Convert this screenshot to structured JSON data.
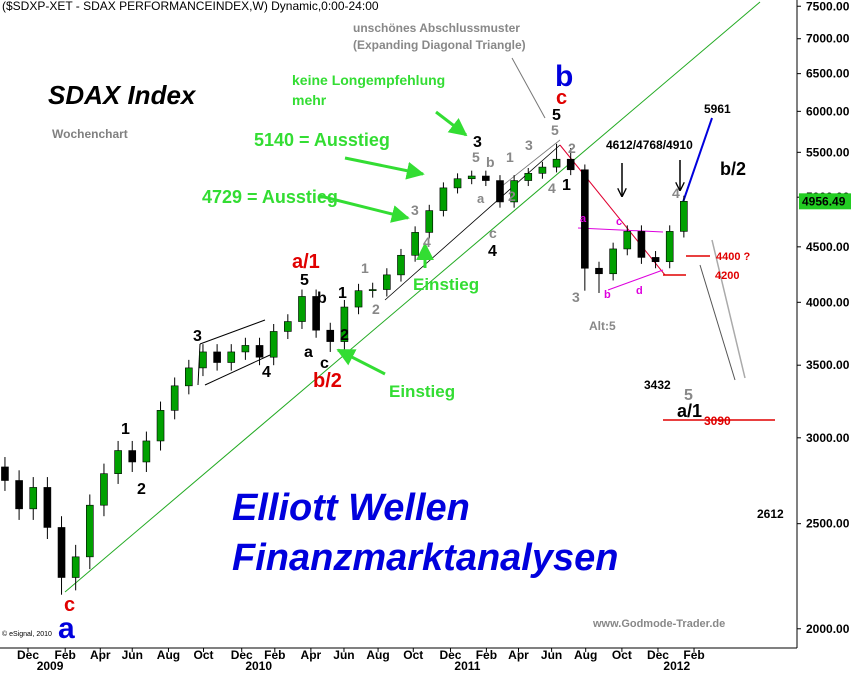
{
  "chart_data": {
    "type": "candlestick",
    "header": "($SDXP-XET - SDAX PERFORMANCEINDEX,W) Dynamic,0:00-24:00",
    "title": "SDAX Index",
    "subtitle": "Wochenchart",
    "log_scale": true,
    "up_color": "#00a000",
    "down_color": "#000000",
    "ylim": [
      1920,
      7600
    ],
    "yticks": [
      {
        "value": 2000,
        "label": "2000.00"
      },
      {
        "value": 2500,
        "label": "2500.00"
      },
      {
        "value": 3000,
        "label": "3000.00"
      },
      {
        "value": 3500,
        "label": "3500.00"
      },
      {
        "value": 4000,
        "label": "4000.00"
      },
      {
        "value": 4500,
        "label": "4500.00"
      },
      {
        "value": 5000,
        "label": "5000.00"
      },
      {
        "value": 5500,
        "label": "5500.00"
      },
      {
        "value": 6000,
        "label": "6000.00"
      },
      {
        "value": 6500,
        "label": "6500.00"
      },
      {
        "value": 7000,
        "label": "7000.00"
      },
      {
        "value": 7500,
        "label": "7500.00"
      }
    ],
    "xlim": [
      -0.35,
      56
    ],
    "xticks": [
      {
        "value": 1.63,
        "label": "Dec"
      },
      {
        "value": 4.26,
        "label": "Feb"
      },
      {
        "value": 6.74,
        "label": "Apr"
      },
      {
        "value": 9.0,
        "label": "Jun"
      },
      {
        "value": 11.56,
        "label": "Aug"
      },
      {
        "value": 14.04,
        "label": "Oct"
      },
      {
        "value": 16.74,
        "label": "Dec"
      },
      {
        "value": 19.08,
        "label": "Feb"
      },
      {
        "value": 21.63,
        "label": "Apr"
      },
      {
        "value": 23.97,
        "label": "Jun"
      },
      {
        "value": 26.38,
        "label": "Aug"
      },
      {
        "value": 28.87,
        "label": "Oct"
      },
      {
        "value": 31.5,
        "label": "Dec"
      },
      {
        "value": 34.04,
        "label": "Feb"
      },
      {
        "value": 36.31,
        "label": "Apr"
      },
      {
        "value": 38.65,
        "label": "Jun"
      },
      {
        "value": 41.06,
        "label": "Aug"
      },
      {
        "value": 43.62,
        "label": "Oct"
      },
      {
        "value": 46.17,
        "label": "Dec"
      },
      {
        "value": 48.72,
        "label": "Feb"
      }
    ],
    "year_ticks": [
      {
        "value": 3.19,
        "label": "2009"
      },
      {
        "value": 17.94,
        "label": "2010"
      },
      {
        "value": 32.7,
        "label": "2011"
      },
      {
        "value": 47.5,
        "label": "2012"
      }
    ],
    "open": [
      2820,
      2740,
      2580,
      2700,
      2480,
      2230,
      2330,
      2600,
      2780,
      2920,
      2850,
      2980,
      3180,
      3350,
      3480,
      3600,
      3520,
      3600,
      3650,
      3560,
      3760,
      3840,
      4050,
      3770,
      3680,
      3960,
      4100,
      4110,
      4240,
      4420,
      4640,
      4860,
      5100,
      5200,
      5230,
      5180,
      4950,
      5180,
      5260,
      5330,
      5420,
      5300,
      4300,
      4250,
      4480,
      4650,
      4400,
      4360,
      4650
    ],
    "high": [
      2880,
      2800,
      2760,
      2760,
      2540,
      2390,
      2660,
      2840,
      2980,
      2980,
      3040,
      3240,
      3410,
      3540,
      3660,
      3660,
      3660,
      3710,
      3710,
      3820,
      3900,
      4110,
      4110,
      3830,
      4020,
      4160,
      4170,
      4300,
      4480,
      4700,
      4920,
      5160,
      5260,
      5290,
      5290,
      5240,
      5240,
      5320,
      5390,
      5600,
      5550,
      5360,
      4360,
      4540,
      4710,
      4710,
      4460,
      4710,
      5016
    ],
    "low": [
      2680,
      2520,
      2520,
      2420,
      2150,
      2170,
      2270,
      2540,
      2720,
      2790,
      2790,
      2920,
      3120,
      3290,
      3420,
      3460,
      3460,
      3540,
      3500,
      3500,
      3700,
      3780,
      3710,
      3600,
      3620,
      3900,
      4040,
      4050,
      4180,
      4360,
      4580,
      4800,
      5040,
      5140,
      5120,
      4890,
      4890,
      5120,
      5200,
      5270,
      5240,
      4100,
      4080,
      4190,
      4420,
      4340,
      4300,
      4300,
      4590
    ],
    "close": [
      2740,
      2580,
      2700,
      2480,
      2230,
      2330,
      2600,
      2780,
      2920,
      2850,
      2980,
      3180,
      3350,
      3480,
      3600,
      3520,
      3600,
      3650,
      3560,
      3760,
      3840,
      4050,
      3770,
      3680,
      3960,
      4100,
      4110,
      4240,
      4420,
      4640,
      4860,
      5100,
      5200,
      5230,
      5180,
      4950,
      5180,
      5260,
      5330,
      5420,
      5300,
      4300,
      4250,
      4480,
      4650,
      4400,
      4360,
      4650,
      4956.49
    ],
    "annotations": [
      "keine Longempfehlung",
      "mehr",
      "5140 = Ausstieg",
      "4729 = Ausstieg",
      "unschönes Abschlussmuster",
      "(Expanding Diagonal Triangle)",
      "Elliott Wellen",
      "Finanzmarktanalysen",
      "Einstieg",
      "Einstieg",
      "www.Godmode-Trader.de",
      "© eSignal, 2010",
      "b",
      "c",
      "5",
      "5",
      "3",
      "5",
      "b",
      "a",
      "c",
      "4",
      "1",
      "2",
      "3",
      "4",
      "1",
      "2",
      "3",
      "a/1",
      "5",
      "b",
      "1",
      "1",
      "2",
      "2",
      "a",
      "c",
      "b/2",
      "3",
      "4",
      "1",
      "2",
      "3",
      "4",
      "c",
      "a",
      "4612/4768/4910",
      "5961",
      "b/2",
      "4",
      "4400 ?",
      "4200",
      "a",
      "c",
      "b",
      "d",
      "Alt:5",
      "3432",
      "5",
      "a/1",
      "3090",
      "2612"
    ]
  }
}
